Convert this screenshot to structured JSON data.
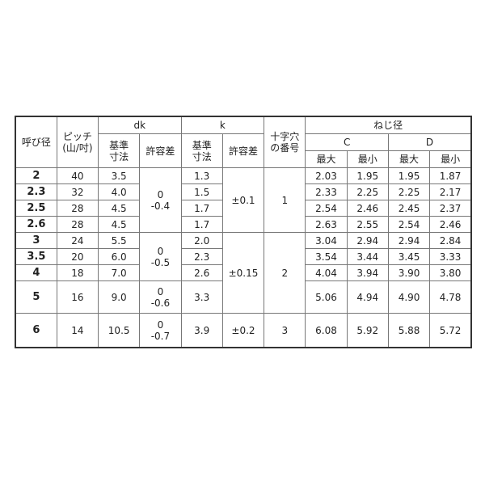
{
  "header": {
    "nominal": "呼び径",
    "pitch": "ピッチ\n(山/吋)",
    "pitch_l1": "ピッチ",
    "pitch_l2": "(山/吋)",
    "dk": "dk",
    "k": "k",
    "cross_l1": "十字穴",
    "cross_l2": "の番号",
    "thread": "ねじ径",
    "C": "C",
    "D": "D",
    "basic_l1": "基準",
    "basic_l2": "寸法",
    "tol": "許容差",
    "max": "最大",
    "min": "最小"
  },
  "rows": [
    {
      "size": "2",
      "pitch": "40",
      "dk": "3.5",
      "k": "1.3",
      "c_max": "2.03",
      "c_min": "1.95",
      "d_max": "1.95",
      "d_min": "1.87"
    },
    {
      "size": "2.3",
      "pitch": "32",
      "dk": "4.0",
      "k": "1.5",
      "c_max": "2.33",
      "c_min": "2.25",
      "d_max": "2.25",
      "d_min": "2.17"
    },
    {
      "size": "2.5",
      "pitch": "28",
      "dk": "4.5",
      "k": "1.7",
      "c_max": "2.54",
      "c_min": "2.46",
      "d_max": "2.45",
      "d_min": "2.37"
    },
    {
      "size": "2.6",
      "pitch": "28",
      "dk": "4.5",
      "k": "1.7",
      "c_max": "2.63",
      "c_min": "2.55",
      "d_max": "2.54",
      "d_min": "2.46"
    },
    {
      "size": "3",
      "pitch": "24",
      "dk": "5.5",
      "k": "2.0",
      "c_max": "3.04",
      "c_min": "2.94",
      "d_max": "2.94",
      "d_min": "2.84"
    },
    {
      "size": "3.5",
      "pitch": "20",
      "dk": "6.0",
      "k": "2.3",
      "c_max": "3.54",
      "c_min": "3.44",
      "d_max": "3.45",
      "d_min": "3.33"
    },
    {
      "size": "4",
      "pitch": "18",
      "dk": "7.0",
      "k": "2.6",
      "c_max": "4.04",
      "c_min": "3.94",
      "d_max": "3.90",
      "d_min": "3.80"
    },
    {
      "size": "5",
      "pitch": "16",
      "dk": "9.0",
      "k": "3.3",
      "c_max": "5.06",
      "c_min": "4.94",
      "d_max": "4.90",
      "d_min": "4.78"
    },
    {
      "size": "6",
      "pitch": "14",
      "dk": "10.5",
      "k": "3.9",
      "c_max": "6.08",
      "c_min": "5.92",
      "d_max": "5.88",
      "d_min": "5.72"
    }
  ],
  "groups": {
    "dk_tol": [
      {
        "upper": "0",
        "lower": "-0.4"
      },
      {
        "upper": "0",
        "lower": "-0.5"
      },
      {
        "upper": "0",
        "lower": "-0.6"
      },
      {
        "upper": "0",
        "lower": "-0.7"
      }
    ],
    "k_tol": [
      "±0.1",
      "±0.15",
      "±0.2"
    ],
    "cross": [
      "1",
      "2",
      "3"
    ]
  }
}
